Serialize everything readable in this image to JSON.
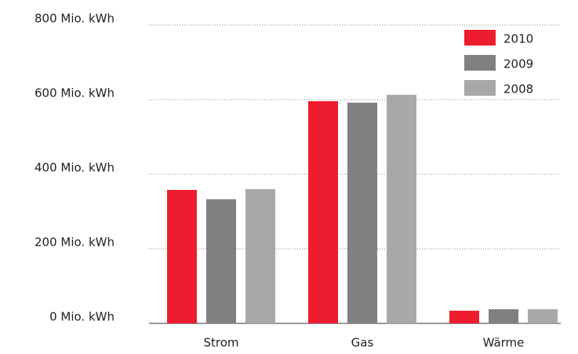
{
  "chart_data": {
    "type": "bar",
    "categories": [
      "Strom",
      "Gas",
      "Wärme"
    ],
    "series": [
      {
        "name": "2010",
        "color": "#ed1c2e",
        "values": [
          358,
          596,
          34
        ]
      },
      {
        "name": "2009",
        "color": "#808083",
        "values": [
          333,
          592,
          38
        ]
      },
      {
        "name": "2008",
        "color": "#a7a8aa",
        "values": [
          360,
          613,
          38
        ]
      }
    ],
    "ylim": [
      0,
      800
    ],
    "yticks": [
      {
        "value": 0,
        "label": "0 Mio. kWh"
      },
      {
        "value": 200,
        "label": "200 Mio. kWh"
      },
      {
        "value": 400,
        "label": "400 Mio. kWh"
      },
      {
        "value": 600,
        "label": "600 Mio. kWh"
      },
      {
        "value": 800,
        "label": "800 Mio. kWh"
      }
    ],
    "grid": true,
    "legend": "upper right"
  }
}
